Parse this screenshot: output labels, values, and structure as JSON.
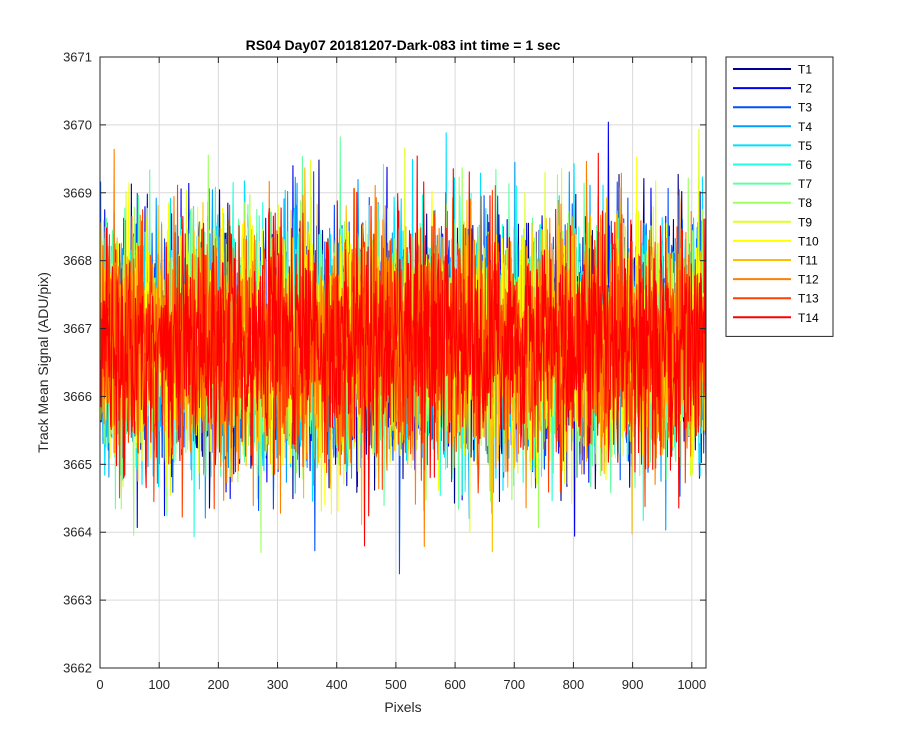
{
  "chart_data": {
    "type": "line",
    "title": "RS04 Day07 20181207-Dark-083 int time = 1 sec",
    "xlabel": "Pixels",
    "ylabel": "Track Mean Signal (ADU/pix)",
    "xlim": [
      0,
      1024
    ],
    "ylim": [
      3662,
      3671
    ],
    "xticks": [
      0,
      100,
      200,
      300,
      400,
      500,
      600,
      700,
      800,
      900,
      1000
    ],
    "yticks": [
      3662,
      3663,
      3664,
      3665,
      3666,
      3667,
      3668,
      3669,
      3670,
      3671
    ],
    "grid": true,
    "legend_position": "outside-top-right",
    "signal_model": {
      "points_per_series": 1024,
      "approx_mean": 3666.8,
      "approx_std": 0.85,
      "approx_min": 3662.8,
      "approx_max": 3670.6
    },
    "series": [
      {
        "name": "T1",
        "color": "#00008f"
      },
      {
        "name": "T2",
        "color": "#0000ef"
      },
      {
        "name": "T3",
        "color": "#0050ff"
      },
      {
        "name": "T4",
        "color": "#00a0ff"
      },
      {
        "name": "T5",
        "color": "#00dfff"
      },
      {
        "name": "T6",
        "color": "#20ffdf"
      },
      {
        "name": "T7",
        "color": "#60ffa0"
      },
      {
        "name": "T8",
        "color": "#9fff60"
      },
      {
        "name": "T9",
        "color": "#dfff20"
      },
      {
        "name": "T10",
        "color": "#ffff00"
      },
      {
        "name": "T11",
        "color": "#ffbf00"
      },
      {
        "name": "T12",
        "color": "#ff8000"
      },
      {
        "name": "T13",
        "color": "#ff4000"
      },
      {
        "name": "T14",
        "color": "#ff0000"
      }
    ]
  }
}
